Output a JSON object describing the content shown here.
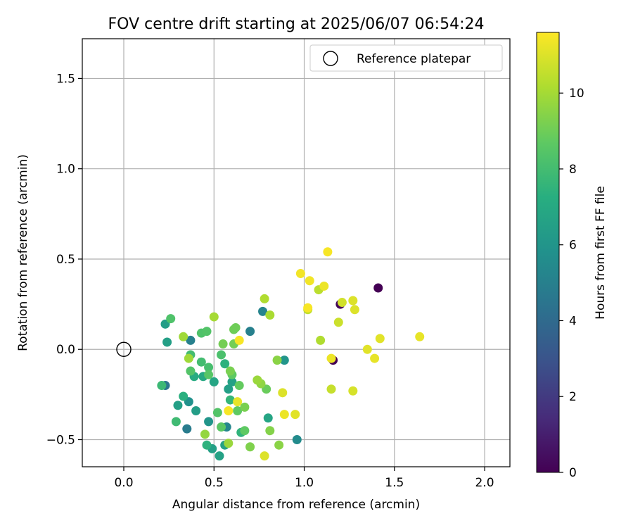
{
  "chart_data": {
    "type": "scatter",
    "title": "FOV centre drift starting at 2025/06/07 06:54:24",
    "xlabel": "Angular distance from reference (arcmin)",
    "ylabel": "Rotation from reference (arcmin)",
    "xlim": [
      -0.23,
      2.14
    ],
    "ylim": [
      -0.65,
      1.72
    ],
    "xticks": [
      0.0,
      0.5,
      1.0,
      1.5,
      2.0
    ],
    "xtick_labels": [
      "0.0",
      "0.5",
      "1.0",
      "1.5",
      "2.0"
    ],
    "yticks": [
      -0.5,
      0.0,
      0.5,
      1.0,
      1.5
    ],
    "ytick_labels": [
      "−0.5",
      "0.0",
      "0.5",
      "1.0",
      "1.5"
    ],
    "grid": true,
    "legend": {
      "position": "top-right",
      "entries": [
        "Reference platepar"
      ]
    },
    "reference_point": {
      "x": 0.0,
      "y": 0.0
    },
    "colorbar": {
      "label": "Hours from first FF file",
      "range": [
        0,
        11.6
      ],
      "ticks": [
        0,
        2,
        4,
        6,
        8,
        10
      ],
      "tick_labels": [
        "0",
        "2",
        "4",
        "6",
        "8",
        "10"
      ],
      "colormap": "viridis"
    },
    "points": [
      {
        "x": 1.41,
        "y": 0.34,
        "c": 0.0
      },
      {
        "x": 1.16,
        "y": -0.06,
        "c": 0.0
      },
      {
        "x": 1.2,
        "y": 0.25,
        "c": 0.2
      },
      {
        "x": 0.23,
        "y": -0.2,
        "c": 4.5
      },
      {
        "x": 0.35,
        "y": -0.44,
        "c": 4.8
      },
      {
        "x": 0.37,
        "y": 0.05,
        "c": 5.0
      },
      {
        "x": 0.77,
        "y": 0.21,
        "c": 5.2
      },
      {
        "x": 0.7,
        "y": 0.1,
        "c": 5.0
      },
      {
        "x": 0.57,
        "y": -0.43,
        "c": 5.3
      },
      {
        "x": 0.96,
        "y": -0.5,
        "c": 5.5
      },
      {
        "x": 0.89,
        "y": -0.06,
        "c": 6.0
      },
      {
        "x": 0.36,
        "y": -0.29,
        "c": 5.8
      },
      {
        "x": 0.47,
        "y": -0.4,
        "c": 6.0
      },
      {
        "x": 0.23,
        "y": 0.14,
        "c": 6.4
      },
      {
        "x": 0.24,
        "y": 0.04,
        "c": 6.5
      },
      {
        "x": 0.3,
        "y": -0.31,
        "c": 6.5
      },
      {
        "x": 0.4,
        "y": -0.34,
        "c": 6.4
      },
      {
        "x": 0.49,
        "y": -0.55,
        "c": 6.5
      },
      {
        "x": 0.53,
        "y": -0.59,
        "c": 6.6
      },
      {
        "x": 0.56,
        "y": -0.53,
        "c": 6.6
      },
      {
        "x": 0.58,
        "y": -0.22,
        "c": 6.5
      },
      {
        "x": 0.6,
        "y": -0.18,
        "c": 6.6
      },
      {
        "x": 0.8,
        "y": -0.38,
        "c": 6.8
      },
      {
        "x": 0.5,
        "y": -0.18,
        "c": 6.8
      },
      {
        "x": 0.44,
        "y": -0.15,
        "c": 7.0
      },
      {
        "x": 0.39,
        "y": -0.15,
        "c": 7.1
      },
      {
        "x": 0.33,
        "y": -0.26,
        "c": 7.3
      },
      {
        "x": 0.46,
        "y": -0.53,
        "c": 7.4
      },
      {
        "x": 0.56,
        "y": -0.08,
        "c": 7.4
      },
      {
        "x": 0.59,
        "y": -0.28,
        "c": 7.6
      },
      {
        "x": 0.65,
        "y": -0.46,
        "c": 7.5
      },
      {
        "x": 0.21,
        "y": -0.2,
        "c": 7.8
      },
      {
        "x": 0.29,
        "y": -0.4,
        "c": 7.9
      },
      {
        "x": 0.37,
        "y": -0.03,
        "c": 8.0
      },
      {
        "x": 0.43,
        "y": -0.07,
        "c": 8.0
      },
      {
        "x": 0.47,
        "y": -0.1,
        "c": 8.1
      },
      {
        "x": 0.54,
        "y": -0.03,
        "c": 8.2
      },
      {
        "x": 0.26,
        "y": 0.17,
        "c": 8.3
      },
      {
        "x": 0.43,
        "y": 0.09,
        "c": 8.3
      },
      {
        "x": 0.46,
        "y": 0.1,
        "c": 8.4
      },
      {
        "x": 0.37,
        "y": -0.12,
        "c": 8.4
      },
      {
        "x": 0.47,
        "y": -0.14,
        "c": 8.5
      },
      {
        "x": 0.52,
        "y": -0.35,
        "c": 8.4
      },
      {
        "x": 0.54,
        "y": -0.43,
        "c": 8.6
      },
      {
        "x": 0.67,
        "y": -0.45,
        "c": 8.7
      },
      {
        "x": 0.6,
        "y": -0.14,
        "c": 8.7
      },
      {
        "x": 0.63,
        "y": -0.34,
        "c": 8.7
      },
      {
        "x": 0.64,
        "y": -0.2,
        "c": 8.8
      },
      {
        "x": 0.79,
        "y": -0.22,
        "c": 8.9
      },
      {
        "x": 0.61,
        "y": 0.11,
        "c": 9.0
      },
      {
        "x": 0.62,
        "y": 0.12,
        "c": 9.0
      },
      {
        "x": 0.61,
        "y": 0.03,
        "c": 9.1
      },
      {
        "x": 0.55,
        "y": 0.03,
        "c": 9.1
      },
      {
        "x": 0.59,
        "y": -0.12,
        "c": 9.2
      },
      {
        "x": 0.67,
        "y": -0.32,
        "c": 9.2
      },
      {
        "x": 0.7,
        "y": -0.54,
        "c": 9.3
      },
      {
        "x": 0.81,
        "y": -0.45,
        "c": 9.4
      },
      {
        "x": 0.86,
        "y": -0.53,
        "c": 9.5
      },
      {
        "x": 0.85,
        "y": -0.06,
        "c": 9.5
      },
      {
        "x": 0.76,
        "y": -0.19,
        "c": 9.6
      },
      {
        "x": 0.74,
        "y": -0.17,
        "c": 9.8
      },
      {
        "x": 0.45,
        "y": -0.47,
        "c": 9.7
      },
      {
        "x": 0.58,
        "y": -0.52,
        "c": 9.8
      },
      {
        "x": 0.33,
        "y": 0.07,
        "c": 9.9
      },
      {
        "x": 0.36,
        "y": -0.05,
        "c": 9.9
      },
      {
        "x": 0.5,
        "y": 0.18,
        "c": 10.0
      },
      {
        "x": 0.81,
        "y": 0.19,
        "c": 10.1
      },
      {
        "x": 0.78,
        "y": 0.28,
        "c": 10.2
      },
      {
        "x": 1.09,
        "y": 0.05,
        "c": 10.2
      },
      {
        "x": 1.08,
        "y": 0.33,
        "c": 10.4
      },
      {
        "x": 1.02,
        "y": 0.22,
        "c": 10.5
      },
      {
        "x": 1.15,
        "y": -0.22,
        "c": 10.6
      },
      {
        "x": 1.19,
        "y": 0.15,
        "c": 10.7
      },
      {
        "x": 1.21,
        "y": 0.26,
        "c": 10.8
      },
      {
        "x": 1.27,
        "y": -0.23,
        "c": 10.9
      },
      {
        "x": 1.27,
        "y": 0.27,
        "c": 11.0
      },
      {
        "x": 1.28,
        "y": 0.22,
        "c": 11.0
      },
      {
        "x": 1.42,
        "y": 0.06,
        "c": 11.1
      },
      {
        "x": 1.35,
        "y": 0.0,
        "c": 11.1
      },
      {
        "x": 1.39,
        "y": -0.05,
        "c": 11.2
      },
      {
        "x": 1.64,
        "y": 0.07,
        "c": 11.2
      },
      {
        "x": 1.15,
        "y": -0.05,
        "c": 11.3
      },
      {
        "x": 1.11,
        "y": 0.35,
        "c": 11.3
      },
      {
        "x": 0.98,
        "y": 0.42,
        "c": 11.4
      },
      {
        "x": 1.03,
        "y": 0.38,
        "c": 11.4
      },
      {
        "x": 1.13,
        "y": 0.54,
        "c": 11.5
      },
      {
        "x": 1.02,
        "y": 0.23,
        "c": 11.5
      },
      {
        "x": 0.88,
        "y": -0.24,
        "c": 11.0
      },
      {
        "x": 0.89,
        "y": -0.36,
        "c": 11.3
      },
      {
        "x": 0.95,
        "y": -0.36,
        "c": 11.1
      },
      {
        "x": 0.78,
        "y": -0.59,
        "c": 11.0
      },
      {
        "x": 0.63,
        "y": -0.29,
        "c": 11.2
      },
      {
        "x": 0.58,
        "y": -0.34,
        "c": 11.5
      },
      {
        "x": 0.64,
        "y": 0.05,
        "c": 11.5
      }
    ]
  }
}
